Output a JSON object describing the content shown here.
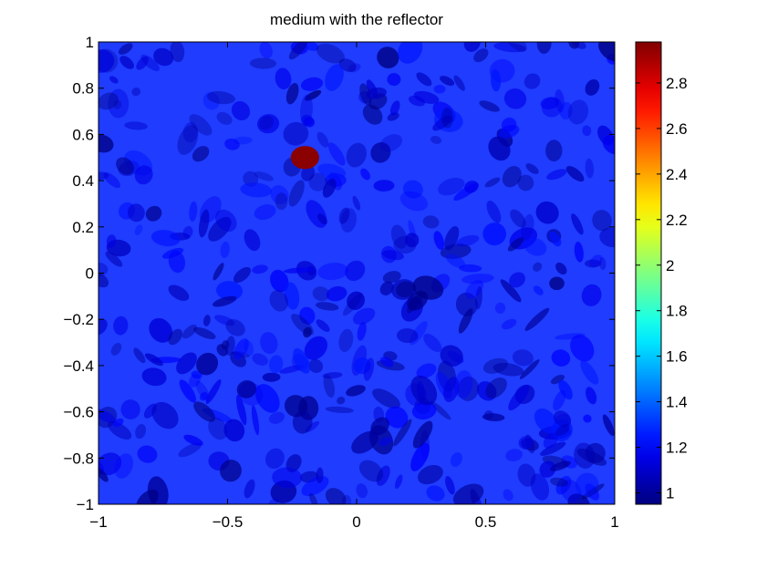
{
  "chart_data": {
    "type": "heatmap",
    "title": "medium with the reflector",
    "xlabel": "",
    "ylabel": "",
    "xlim": [
      -1,
      1
    ],
    "ylim": [
      -1,
      1
    ],
    "x_ticks": [
      -1,
      -0.5,
      0,
      0.5,
      1
    ],
    "x_tick_labels": [
      "−1",
      "−0.5",
      "0",
      "0.5",
      "1"
    ],
    "y_ticks": [
      1,
      0.8,
      0.6,
      0.4,
      0.2,
      0,
      -0.2,
      -0.4,
      -0.6,
      -0.8,
      -1
    ],
    "y_tick_labels": [
      "1",
      "0.8",
      "0.6",
      "0.4",
      "0.2",
      "0",
      "−0.2",
      "−0.4",
      "−0.6",
      "−0.8",
      "−1"
    ],
    "colorbar": {
      "colormap": "jet",
      "range": [
        0.95,
        2.98
      ],
      "ticks": [
        1,
        1.2,
        1.4,
        1.6,
        1.8,
        2,
        2.2,
        2.4,
        2.6,
        2.8
      ],
      "tick_labels": [
        "1",
        "1.2",
        "1.4",
        "1.6",
        "1.8",
        "2",
        "2.2",
        "2.4",
        "2.6",
        "2.8"
      ]
    },
    "background_value": 1.05,
    "background_variation": [
      0.95,
      1.25
    ],
    "reflector": {
      "center": [
        -0.2,
        0.5
      ],
      "radius_x": 0.055,
      "radius_y": 0.05,
      "value": 2.98
    },
    "grid": false,
    "colors": {
      "field_base": "#1f3cff",
      "field_dark": "#0a1ed8",
      "field_light": "#3a5cff",
      "reflector": "#8b0000"
    }
  }
}
